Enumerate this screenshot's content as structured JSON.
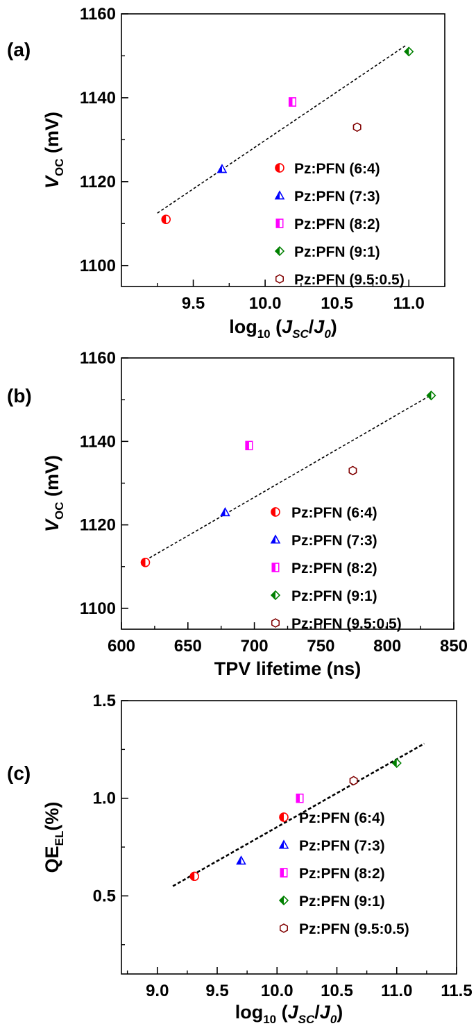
{
  "chart_data": [
    {
      "panel_label": "(a)",
      "type": "scatter",
      "xlabel": {
        "pre": "log",
        "sub": "10",
        "mid": " (",
        "j1": "J",
        "j1sub": "SC",
        "slash": "/",
        "j2": "J",
        "j2sub": "0",
        "post": ")"
      },
      "ylabel": {
        "main": "V",
        "sub": "OC",
        "post": " (mV)"
      },
      "xlim": [
        9.0,
        11.25
      ],
      "ylim": [
        1095,
        1160
      ],
      "xticks": [
        9.5,
        10.0,
        10.5,
        11.0
      ],
      "xtick_labels": [
        "9.5",
        "10.0",
        "10.5",
        "11.0"
      ],
      "yticks": [
        1100,
        1120,
        1140,
        1160
      ],
      "ytick_labels": [
        "1100",
        "1120",
        "1140",
        "1160"
      ],
      "series": [
        {
          "name": "Pz:PFN (6:4)",
          "marker": "circle-half",
          "color": "#ff0000",
          "x": 9.31,
          "y": 1111
        },
        {
          "name": "Pz:PFN (7:3)",
          "marker": "triangle-half",
          "color": "#0000ff",
          "x": 9.7,
          "y": 1123
        },
        {
          "name": "Pz:PFN (8:2)",
          "marker": "square-half",
          "color": "#ff00ff",
          "x": 10.19,
          "y": 1139
        },
        {
          "name": "Pz:PFN (9:1)",
          "marker": "diamond-half",
          "color": "#008000",
          "x": 11.0,
          "y": 1151
        },
        {
          "name": "Pz:PFN (9.5:0.5)",
          "marker": "hexagon-half",
          "color": "#800000",
          "x": 10.64,
          "y": 1133
        }
      ],
      "fit_line": {
        "x": [
          9.25,
          10.98
        ],
        "y": [
          1112.5,
          1152.5
        ]
      }
    },
    {
      "panel_label": "(b)",
      "type": "scatter",
      "xlabel": {
        "text": "TPV lifetime (ns)"
      },
      "ylabel": {
        "main": "V",
        "sub": "OC",
        "post": " (mV)"
      },
      "xlim": [
        600,
        850
      ],
      "ylim": [
        1095,
        1160
      ],
      "xticks": [
        600,
        650,
        700,
        750,
        800,
        850
      ],
      "xtick_labels": [
        "600",
        "650",
        "700",
        "750",
        "800",
        "850"
      ],
      "yticks": [
        1100,
        1120,
        1140,
        1160
      ],
      "ytick_labels": [
        "1100",
        "1120",
        "1140",
        "1160"
      ],
      "series": [
        {
          "name": "Pz:PFN (6:4)",
          "marker": "circle-half",
          "color": "#ff0000",
          "x": 618,
          "y": 1111
        },
        {
          "name": "Pz:PFN (7:3)",
          "marker": "triangle-half",
          "color": "#0000ff",
          "x": 678,
          "y": 1123
        },
        {
          "name": "Pz:PFN (8:2)",
          "marker": "square-half",
          "color": "#ff00ff",
          "x": 696,
          "y": 1139
        },
        {
          "name": "Pz:PFN (9:1)",
          "marker": "diamond-half",
          "color": "#008000",
          "x": 833,
          "y": 1151
        },
        {
          "name": "Pz:PFN (9.5:0.5)",
          "marker": "hexagon-half",
          "color": "#800000",
          "x": 774,
          "y": 1133
        }
      ],
      "fit_line": {
        "x": [
          618,
          835
        ],
        "y": [
          1111.5,
          1151.5
        ]
      }
    },
    {
      "panel_label": "(c)",
      "type": "scatter",
      "xlabel": {
        "pre": "log",
        "sub": "10",
        "mid": " (",
        "j1": "J",
        "j1sub": "SC",
        "slash": "/",
        "j2": "J",
        "j2sub": "0",
        "post": ")"
      },
      "ylabel": {
        "main": "QE",
        "sub": "EL",
        "post": "(%)"
      },
      "xlim": [
        8.7,
        11.5
      ],
      "ylim": [
        0.1,
        1.5
      ],
      "xticks": [
        9.0,
        9.5,
        10.0,
        10.5,
        11.0,
        11.5
      ],
      "xtick_labels": [
        "9.0",
        "9.5",
        "10.0",
        "10.5",
        "11.0",
        "11.5"
      ],
      "yticks": [
        0.5,
        1.0,
        1.5
      ],
      "ytick_labels": [
        "0.5",
        "1.0",
        "1.5"
      ],
      "series": [
        {
          "name": "Pz:PFN (6:4)",
          "marker": "circle-half",
          "color": "#ff0000",
          "x": 9.31,
          "y": 0.6
        },
        {
          "name": "Pz:PFN (7:3)",
          "marker": "triangle-half",
          "color": "#0000ff",
          "x": 9.7,
          "y": 0.68
        },
        {
          "name": "Pz:PFN (8:2)",
          "marker": "square-half",
          "color": "#ff00ff",
          "x": 10.19,
          "y": 1.0
        },
        {
          "name": "Pz:PFN (9:1)",
          "marker": "diamond-half",
          "color": "#008000",
          "x": 11.0,
          "y": 1.18
        },
        {
          "name": "Pz:PFN (9.5:0.5)",
          "marker": "hexagon-half",
          "color": "#800000",
          "x": 10.64,
          "y": 1.09
        }
      ],
      "fit_line": {
        "x": [
          9.13,
          11.23
        ],
        "y": [
          0.55,
          1.28
        ]
      }
    }
  ]
}
